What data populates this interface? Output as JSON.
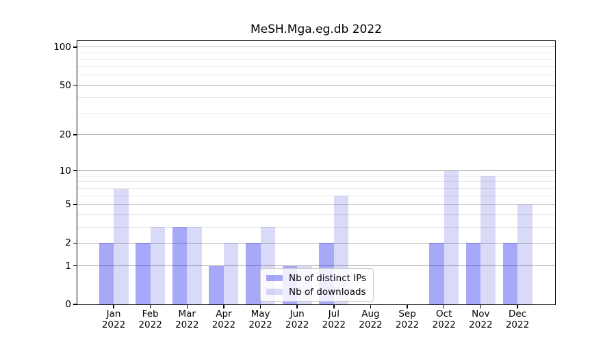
{
  "chart_data": {
    "type": "bar",
    "title": "MeSH.Mga.eg.db 2022",
    "categories": [
      "Jan",
      "Feb",
      "Mar",
      "Apr",
      "May",
      "Jun",
      "Jul",
      "Aug",
      "Sep",
      "Oct",
      "Nov",
      "Dec"
    ],
    "xtick_year": "2022",
    "series": [
      {
        "name": "Nb of distinct IPs",
        "color": "#0606eb",
        "alpha": 0.35,
        "color_on_white": "#a8a8f8",
        "values": [
          2,
          2,
          3,
          1,
          2,
          1,
          2,
          0,
          0,
          2,
          2,
          2
        ]
      },
      {
        "name": "Nb of downloads",
        "color": "#0000d0",
        "alpha": 0.15,
        "color_on_white": "#d9d9f8",
        "values": [
          7,
          3,
          3,
          2,
          3,
          1,
          6,
          0,
          0,
          10,
          9,
          5
        ]
      }
    ],
    "xlabel": "",
    "ylabel": "",
    "yscale": "symlog (linear 0-1, log above; y = bottom - 81.5*ln(1+v))",
    "yticks": [
      0,
      1,
      2,
      5,
      10,
      20,
      50,
      100
    ],
    "yticks_minor": [
      3,
      4,
      6,
      7,
      8,
      9,
      30,
      40,
      60,
      70,
      80,
      90
    ],
    "ylim": [
      0,
      112
    ],
    "grid": true,
    "legend_position": "lower center"
  },
  "colors": {
    "background": "#ffffff",
    "grid_major": "#b2b2b2",
    "grid_minor": "#e9e9e9",
    "spine": "#000000",
    "text": "#000000",
    "legend_border": "#cccccc"
  }
}
